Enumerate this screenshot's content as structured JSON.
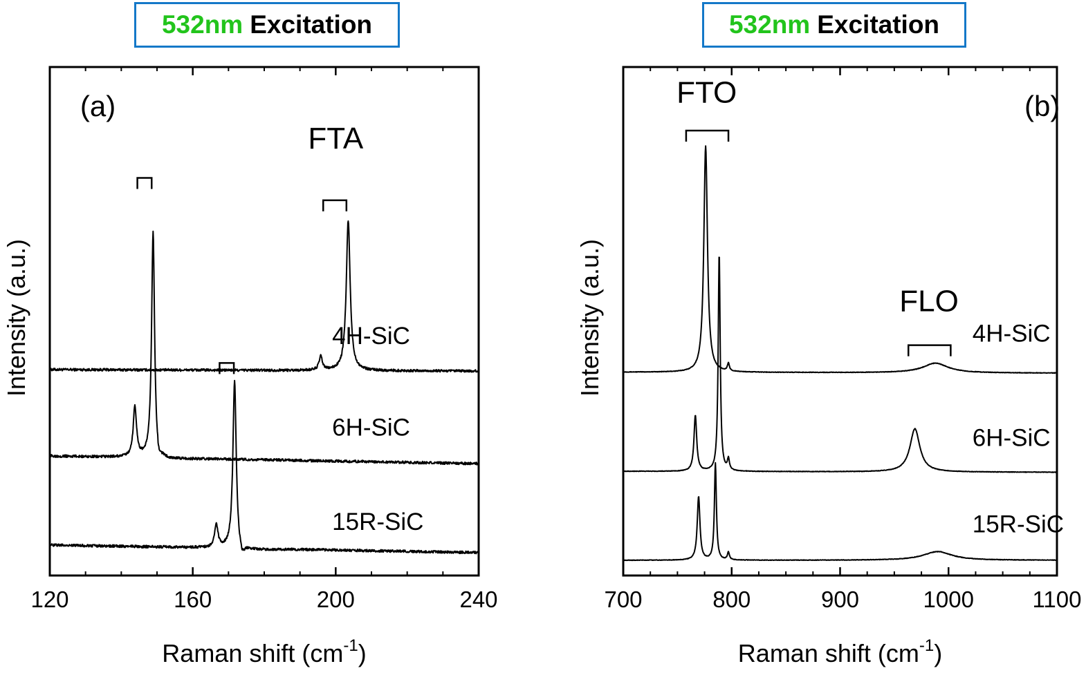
{
  "chart_data": [
    {
      "type": "line",
      "panel_label": "(a)",
      "title_highlight": "532nm",
      "title_rest": "Excitation",
      "xlabel": "Raman shift (cm",
      "xlabel_sup": "-1",
      "xlabel_close": ")",
      "ylabel": "Intensity (a.u.)",
      "xlim": [
        120,
        240
      ],
      "ylim": [
        0,
        10
      ],
      "x_ticks": [
        120,
        160,
        200,
        240
      ],
      "x_minor_step": 10,
      "y_ticks_visible": false,
      "grid": false,
      "annotations": [
        {
          "text": "FTA",
          "x": 200,
          "y": 8.4
        }
      ],
      "brackets": [
        {
          "x1": 144.5,
          "x2": 148.5,
          "y": 7.82
        },
        {
          "x1": 196.5,
          "x2": 203.0,
          "y": 7.38
        },
        {
          "x1": 167.5,
          "x2": 171.5,
          "y": 4.18
        }
      ],
      "series": [
        {
          "name": "4H-SiC",
          "label_pos": [
            199,
            4.55
          ],
          "baseline_start": 4.05,
          "baseline_end": 4.02,
          "noise": 0.025,
          "x": [
            120,
            150,
            185,
            193,
            194.5,
            195.8,
            197.2,
            199,
            201,
            202.5,
            203.3,
            204,
            205,
            206,
            208,
            212,
            240
          ],
          "y": [
            4.05,
            4.02,
            4.0,
            4.02,
            4.08,
            4.26,
            4.08,
            4.05,
            4.28,
            5.3,
            6.85,
            5.6,
            4.35,
            3.92,
            3.88,
            3.9,
            3.92
          ],
          "peaks": [
            {
              "x": 195.8,
              "height": 0.27,
              "width": 0.55
            },
            {
              "x": 203.5,
              "height": 2.95,
              "width": 0.65
            }
          ]
        },
        {
          "name": "6H-SiC",
          "label_pos": [
            199,
            2.75
          ],
          "baseline_start": 2.35,
          "baseline_end": 2.2,
          "noise": 0.025,
          "peaks": [
            {
              "x": 143.8,
              "height": 1.0,
              "width": 0.55
            },
            {
              "x": 148.9,
              "height": 4.45,
              "width": 0.5
            }
          ],
          "dip": {
            "x": 150.2,
            "depth": 0.15,
            "width": 0.9
          }
        },
        {
          "name": "15R-SiC",
          "label_pos": [
            199,
            0.9
          ],
          "baseline_start": 0.6,
          "baseline_end": 0.45,
          "noise": 0.025,
          "peaks": [
            {
              "x": 166.6,
              "height": 0.45,
              "width": 0.55
            },
            {
              "x": 171.7,
              "height": 3.3,
              "width": 0.55
            }
          ],
          "dip": {
            "x": 173.6,
            "depth": 0.17,
            "width": 1.1
          }
        }
      ]
    },
    {
      "type": "line",
      "panel_label": "(b)",
      "title_highlight": "532nm",
      "title_rest": "Excitation",
      "xlabel": "Raman shift (cm",
      "xlabel_sup": "-1",
      "xlabel_close": ")",
      "ylabel": "Intensity (a.u.)",
      "xlim": [
        700,
        1100
      ],
      "ylim": [
        0,
        10
      ],
      "x_ticks": [
        700,
        800,
        900,
        1000,
        1100
      ],
      "x_minor_step": 25,
      "y_ticks_visible": false,
      "grid": false,
      "annotations": [
        {
          "text": "FTO",
          "x": 777,
          "y": 9.3
        },
        {
          "text": "FLO",
          "x": 982,
          "y": 5.2
        }
      ],
      "brackets": [
        {
          "x1": 758,
          "x2": 797,
          "y": 8.75
        },
        {
          "x1": 963,
          "x2": 1002,
          "y": 4.53
        }
      ],
      "series": [
        {
          "name": "4H-SiC",
          "label_pos": [
            1022,
            4.6
          ],
          "baseline_start": 4.0,
          "baseline_end": 3.98,
          "noise": 0.005,
          "peaks": [
            {
              "x": 776,
              "height": 4.45,
              "width": 2.0
            },
            {
              "x": 797,
              "height": 0.15,
              "width": 1.1
            }
          ],
          "broad": {
            "x": 988,
            "height": 0.19,
            "width": 14
          }
        },
        {
          "name": "6H-SiC",
          "label_pos": [
            1022,
            2.55
          ],
          "baseline_start": 2.05,
          "baseline_end": 2.03,
          "noise": 0.005,
          "peaks": [
            {
              "x": 766.5,
              "height": 1.1,
              "width": 1.5
            },
            {
              "x": 788.5,
              "height": 4.3,
              "width": 1.1
            },
            {
              "x": 797,
              "height": 0.22,
              "width": 1.1
            }
          ],
          "broad": {
            "x": 969,
            "height": 0.85,
            "width": 5.5
          }
        },
        {
          "name": "15R-SiC",
          "label_pos": [
            1022,
            0.85
          ],
          "baseline_start": 0.3,
          "baseline_end": 0.3,
          "noise": 0.005,
          "peaks": [
            {
              "x": 769.5,
              "height": 1.25,
              "width": 1.5
            },
            {
              "x": 785,
              "height": 1.9,
              "width": 1.1
            },
            {
              "x": 797,
              "height": 0.15,
              "width": 1.1
            }
          ],
          "broad": {
            "x": 990,
            "height": 0.17,
            "width": 16
          }
        }
      ]
    }
  ]
}
